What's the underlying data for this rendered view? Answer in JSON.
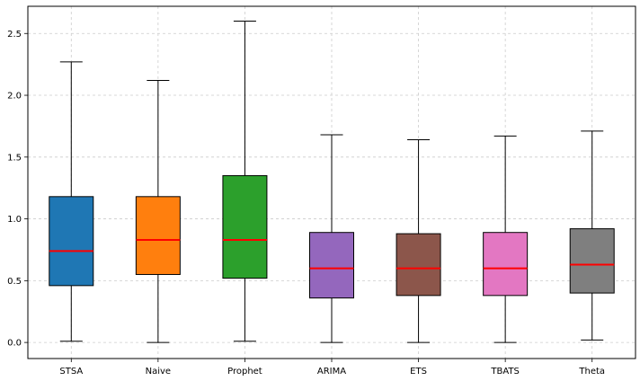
{
  "chart_data": {
    "type": "boxplot",
    "title": "",
    "xlabel": "",
    "ylabel": "",
    "ylim": [
      -0.13,
      2.72
    ],
    "yticks": [
      0.0,
      0.5,
      1.0,
      1.5,
      2.0,
      2.5
    ],
    "ytick_labels": [
      "0.0",
      "0.5",
      "1.0",
      "1.5",
      "2.0",
      "2.5"
    ],
    "grid": true,
    "median_color": "#ff0000",
    "categories": [
      "STSA",
      "Naive",
      "Prophet",
      "ARIMA",
      "ETS",
      "TBATS",
      "Theta"
    ],
    "boxes": [
      {
        "label": "STSA",
        "whislo": 0.01,
        "q1": 0.46,
        "med": 0.74,
        "q3": 1.18,
        "whishi": 2.27,
        "color": "#1f77b4"
      },
      {
        "label": "Naive",
        "whislo": 0.0,
        "q1": 0.55,
        "med": 0.83,
        "q3": 1.18,
        "whishi": 2.12,
        "color": "#ff7f0e"
      },
      {
        "label": "Prophet",
        "whislo": 0.01,
        "q1": 0.52,
        "med": 0.83,
        "q3": 1.35,
        "whishi": 2.6,
        "color": "#2ca02c"
      },
      {
        "label": "ARIMA",
        "whislo": 0.0,
        "q1": 0.36,
        "med": 0.6,
        "q3": 0.89,
        "whishi": 1.68,
        "color": "#9467bd"
      },
      {
        "label": "ETS",
        "whislo": 0.0,
        "q1": 0.38,
        "med": 0.6,
        "q3": 0.88,
        "whishi": 1.64,
        "color": "#8c564b"
      },
      {
        "label": "TBATS",
        "whislo": 0.0,
        "q1": 0.38,
        "med": 0.6,
        "q3": 0.89,
        "whishi": 1.67,
        "color": "#e377c2"
      },
      {
        "label": "Theta",
        "whislo": 0.02,
        "q1": 0.4,
        "med": 0.63,
        "q3": 0.92,
        "whishi": 1.71,
        "color": "#7f7f7f"
      }
    ]
  }
}
